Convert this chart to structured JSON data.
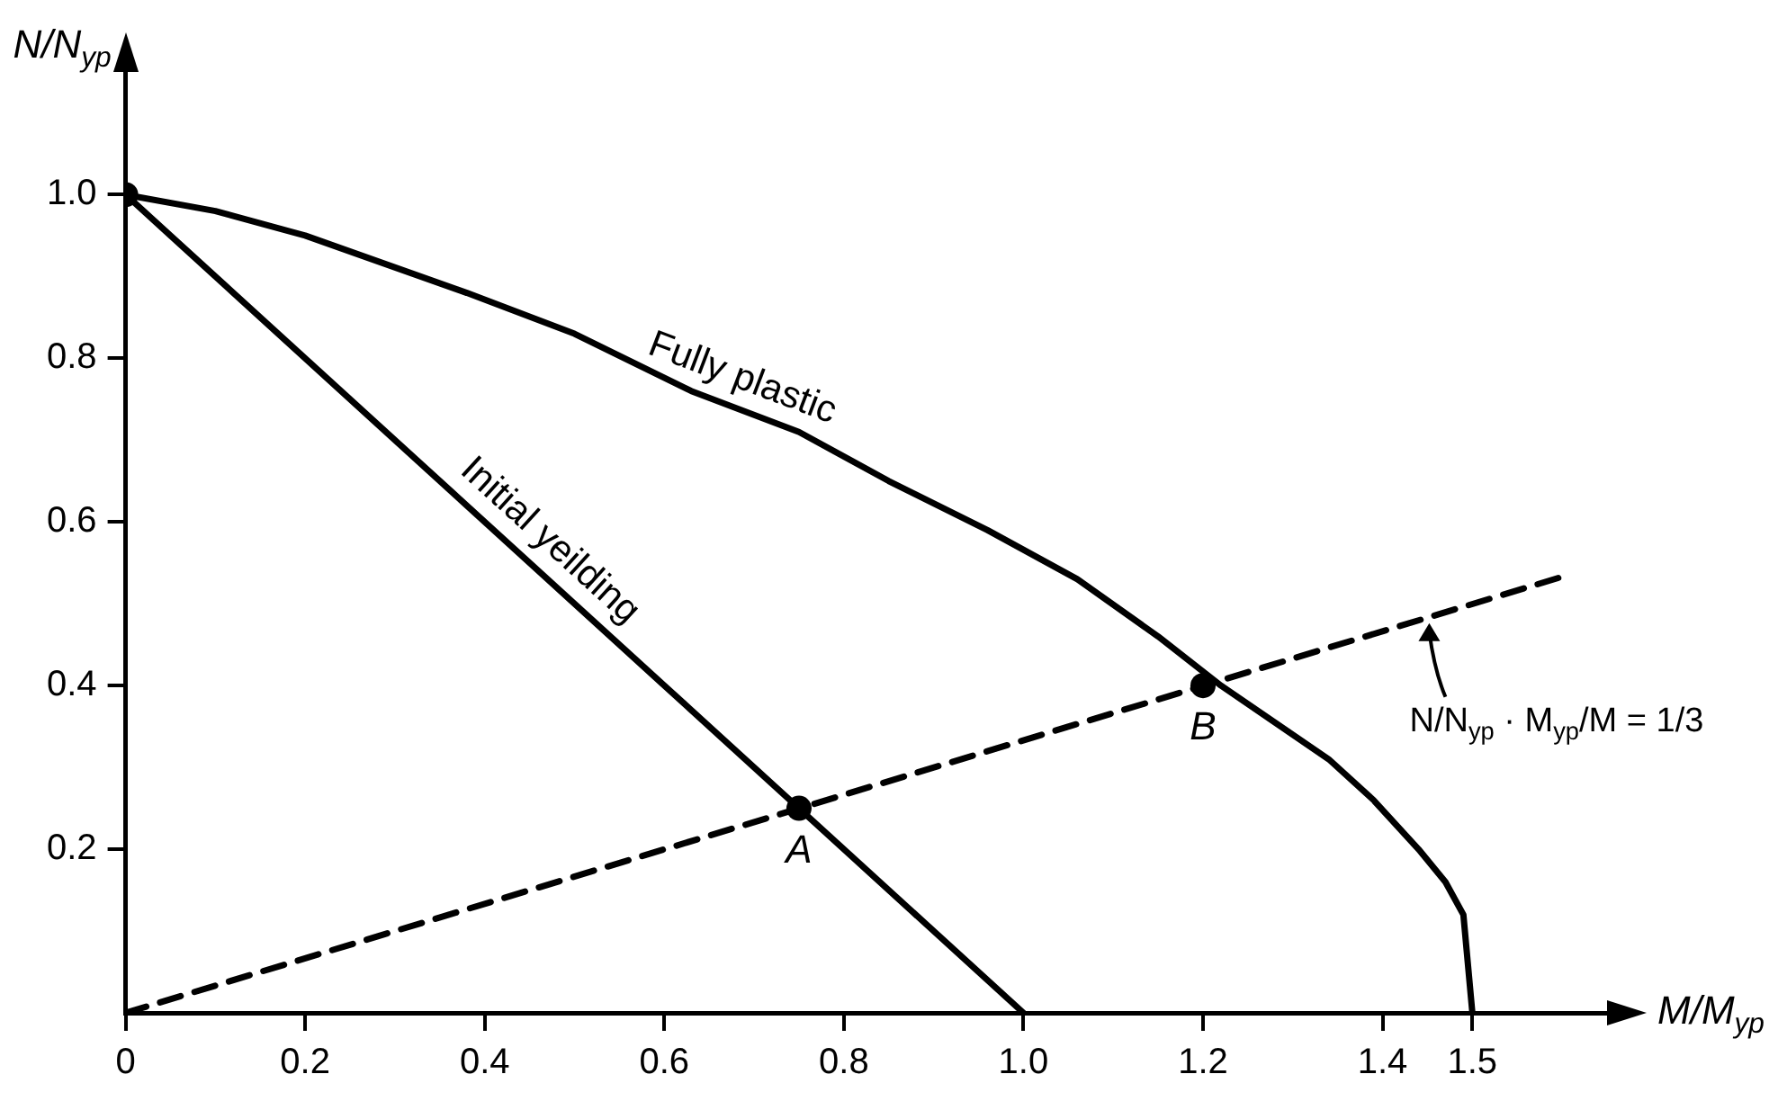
{
  "chart_data": {
    "type": "line",
    "xlabel": "M/M$_{yp}$",
    "ylabel": "N/N$_{yp}$",
    "xlim": [
      0,
      1.65
    ],
    "ylim": [
      0,
      1.15
    ],
    "xticks": [
      0,
      0.2,
      0.4,
      0.6,
      0.8,
      {
        "value": 1,
        "label": "1.0"
      },
      1.2,
      1.4,
      1.5
    ],
    "yticks": [
      0.2,
      0.4,
      0.6,
      0.8,
      {
        "value": 1,
        "label": "1.0"
      }
    ],
    "grid": false,
    "legend": false,
    "series": [
      {
        "name": "Fully plastic",
        "type": "line",
        "color": "#000000",
        "line_style": "solid",
        "x": [
          0,
          0.1,
          0.2,
          0.38,
          0.5,
          0.63,
          0.75,
          0.85,
          0.96,
          1.06,
          1.15,
          1.22,
          1.28,
          1.34,
          1.39,
          1.44,
          1.47,
          1.49,
          1.5
        ],
        "values": [
          1,
          0.98,
          0.95,
          0.88,
          0.83,
          0.76,
          0.71,
          0.65,
          0.59,
          0.53,
          0.46,
          0.4,
          0.355,
          0.31,
          0.26,
          0.2,
          0.16,
          0.12,
          0
        ]
      },
      {
        "name": "Initial yeilding",
        "type": "line",
        "color": "#000000",
        "line_style": "solid",
        "x": [
          0,
          1
        ],
        "values": [
          1,
          0
        ]
      },
      {
        "type": "line",
        "color": "#000000",
        "line_style": "dashed",
        "x": [
          0,
          1.6
        ],
        "values": [
          0,
          0.533
        ]
      },
      {
        "type": "scatter",
        "color": "#000000",
        "marker": "circle",
        "x": [
          0,
          0.75,
          1.2
        ],
        "values": [
          1,
          0.25,
          0.4
        ]
      }
    ],
    "annotations": [
      {
        "text": "A",
        "x": 0.75,
        "y": 0.25
      },
      {
        "text": "B",
        "x": 1.2,
        "y": 0.4
      },
      {
        "text": "N/N$_{yp}$ · M$_{yp}$/M = 1/3",
        "x": 1.45,
        "y": 0.483
      }
    ]
  }
}
